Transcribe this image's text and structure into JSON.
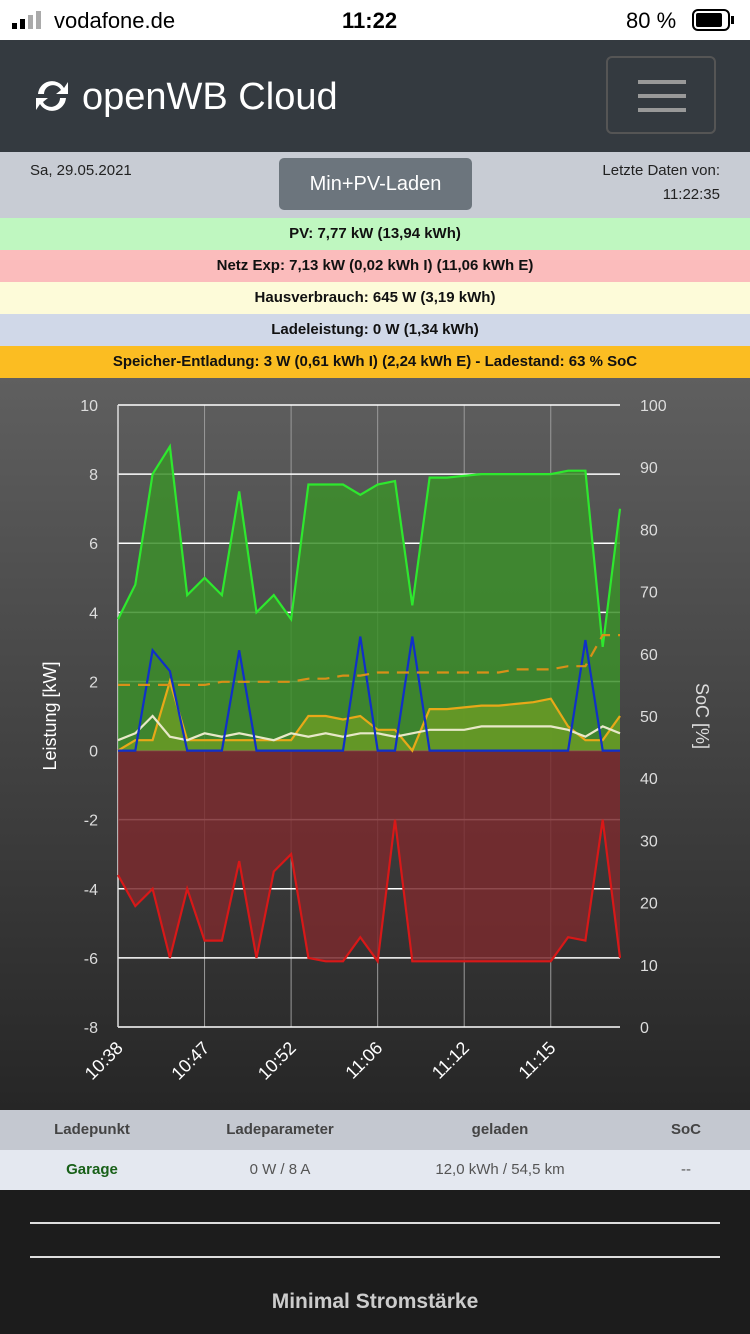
{
  "status": {
    "carrier": "vodafone.de",
    "time": "11:22",
    "battery": "80 %"
  },
  "header": {
    "title": "openWB Cloud"
  },
  "info": {
    "date": "Sa, 29.05.2021",
    "mode": "Min+PV-Laden",
    "last_label": "Letzte Daten von:",
    "last_time": "11:22:35"
  },
  "rows": [
    "PV: 7,77 kW (13,94 kWh)",
    "Netz Exp: 7,13 kW (0,02 kWh I) (11,06 kWh E)",
    "Hausverbrauch: 645 W (3,19 kWh)",
    "Ladeleistung: 0 W (1,34 kWh)",
    "Speicher-Entladung: 3 W (0,61 kWh I) (2,24 kWh E) - Ladestand: 63 % SoC"
  ],
  "chart_data": {
    "type": "line",
    "ylabel": "Leistung [kW]",
    "y2label": "SoC [%]",
    "categories": [
      "10:38",
      null,
      null,
      null,
      null,
      "10:47",
      null,
      null,
      null,
      null,
      "10:52",
      null,
      null,
      null,
      null,
      "11:06",
      null,
      null,
      null,
      null,
      "11:12",
      null,
      null,
      null,
      null,
      "11:15",
      null,
      null,
      null,
      null
    ],
    "ylim": [
      -8,
      10
    ],
    "yticks": [
      -8,
      -6,
      -4,
      -2,
      0,
      2,
      4,
      6,
      8,
      10
    ],
    "y2lim": [
      0,
      100
    ],
    "y2ticks": [
      0,
      10,
      20,
      30,
      40,
      50,
      60,
      70,
      80,
      90,
      100
    ],
    "grid": true,
    "series": [
      {
        "color": "#2ee82e",
        "area": true,
        "areacolor": "#3c8f2a",
        "values": [
          3.8,
          4.8,
          8,
          8.8,
          4.5,
          5,
          4.5,
          7.5,
          4,
          4.5,
          3.8,
          7.7,
          7.7,
          7.7,
          7.4,
          7.7,
          7.8,
          4.2,
          7.9,
          7.9,
          7.95,
          8,
          8,
          8,
          8,
          8,
          8.1,
          8.1,
          3,
          7
        ]
      },
      {
        "color": "#d81818",
        "area": true,
        "areacolor": "#7a2a2e",
        "values": [
          -3.6,
          -4.5,
          -4,
          -6,
          -4,
          -5.5,
          -5.5,
          -3.2,
          -6,
          -3.5,
          -3,
          -6,
          -6.1,
          -6.1,
          -5.4,
          -6.1,
          -2,
          -6.1,
          -6.1,
          -6.1,
          -6.1,
          -6.1,
          -6.1,
          -6.1,
          -6.1,
          -6.1,
          -5.4,
          -5.5,
          -2,
          -6
        ]
      },
      {
        "color": "#e8a818",
        "area": true,
        "areacolor": "#6a9a24",
        "values": [
          0,
          0.3,
          0.3,
          2,
          0.3,
          0.3,
          0.3,
          0.3,
          0.3,
          0.3,
          0.3,
          1,
          1,
          0.9,
          1,
          0.6,
          0.6,
          0,
          1.2,
          1.2,
          1.25,
          1.3,
          1.3,
          1.35,
          1.4,
          1.5,
          0.7,
          0.3,
          0.3,
          1
        ]
      },
      {
        "color": "#e8e8c8",
        "values": [
          0.3,
          0.5,
          1,
          0.4,
          0.3,
          0.5,
          0.4,
          0.5,
          0.4,
          0.3,
          0.5,
          0.4,
          0.5,
          0.4,
          0.5,
          0.5,
          0.4,
          0.5,
          0.6,
          0.6,
          0.6,
          0.7,
          0.7,
          0.7,
          0.7,
          0.7,
          0.6,
          0.4,
          0.7,
          0.5
        ]
      },
      {
        "color": "#1030c8",
        "values": [
          0,
          0,
          2.9,
          2.3,
          0,
          0,
          0,
          2.9,
          0,
          0,
          0,
          0,
          0,
          0,
          3.3,
          0,
          0,
          3.3,
          0,
          0,
          0,
          0,
          0,
          0,
          0,
          0,
          0,
          3.2,
          0,
          0
        ]
      },
      {
        "color": "#d89018",
        "dashed": true,
        "axis": "y2",
        "values": [
          55,
          55,
          55,
          55,
          55,
          55,
          55.5,
          55.5,
          55.5,
          55.5,
          55.5,
          56,
          56,
          56.5,
          56.5,
          57,
          57,
          57,
          57,
          57,
          57,
          57,
          57,
          57.5,
          57.5,
          57.5,
          58,
          58,
          63,
          63
        ]
      }
    ]
  },
  "table": {
    "header": [
      "Ladepunkt",
      "Ladeparameter",
      "geladen",
      "SoC"
    ],
    "rows": [
      [
        "Garage",
        "0 W / 8 A",
        "12,0 kWh / 54,5 km",
        "--"
      ]
    ]
  },
  "footer": {
    "title": "Minimal Stromstärke"
  }
}
